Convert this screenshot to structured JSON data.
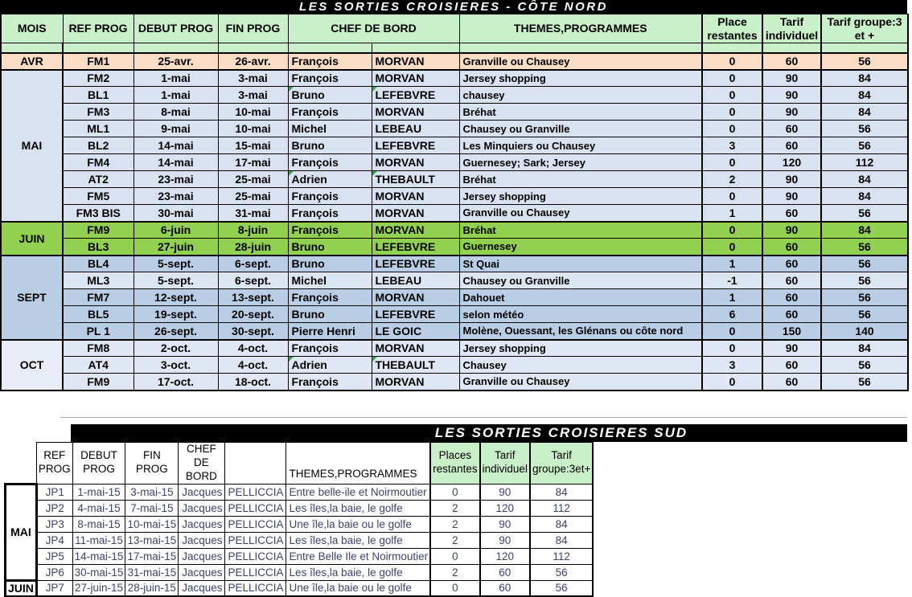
{
  "colors": {
    "title_bg": "#000000",
    "title_fg": "#ffffff",
    "head_green": "#c9f0c9",
    "avr": "#fbdcc5",
    "mai": "#d9e2f1",
    "juin": "#92d050",
    "sept": "#b9cde5",
    "sept_light": "#dce5f2",
    "oct": "#dee7f3",
    "oct_month": "#e7ecf6",
    "south_text": "#39456b",
    "marker": "#2fa84f"
  },
  "table_north": {
    "title": "LES SORTIES CROISIERES - CÔTE NORD",
    "headers": [
      "MOIS",
      "REF PROG",
      "DEBUT PROG",
      "FIN PROG",
      "CHEF DE BORD",
      "THEMES,PROGRAMMES",
      "Place\nrestantes",
      "Tarif\nindividuel",
      "Tarif  groupe:3\net +"
    ],
    "groups": [
      {
        "month": "AVR",
        "style": "avr",
        "rows": [
          {
            "ref": "FM1",
            "debut": "25-avr.",
            "fin": "26-avr.",
            "chef_first": "François",
            "chef_last": "MORVAN",
            "theme": "Granville ou Chausey",
            "places": "0",
            "tarif_ind": "60",
            "tarif_grp": "56"
          }
        ]
      },
      {
        "month": "MAI",
        "style": "mai",
        "rows": [
          {
            "ref": "FM2",
            "debut": "1-mai",
            "fin": "3-mai",
            "chef_first": "François",
            "chef_last": "MORVAN",
            "theme": "Jersey shopping",
            "places": "0",
            "tarif_ind": "90",
            "tarif_grp": "84"
          },
          {
            "ref": "BL1",
            "debut": "1-mai",
            "fin": "3-mai",
            "chef_first": "Bruno",
            "chef_last": "LEFEBVRE",
            "theme": "chausey",
            "places": "0",
            "tarif_ind": "90",
            "tarif_grp": "84",
            "marker": true
          },
          {
            "ref": "FM3",
            "debut": "8-mai",
            "fin": "10-mai",
            "chef_first": "François",
            "chef_last": "MORVAN",
            "theme": "Bréhat",
            "places": "0",
            "tarif_ind": "90",
            "tarif_grp": "84"
          },
          {
            "ref": "ML1",
            "debut": "9-mai",
            "fin": "10-mai",
            "chef_first": "Michel",
            "chef_last": "LEBEAU",
            "theme": "Chausey ou Granville",
            "places": "0",
            "tarif_ind": "60",
            "tarif_grp": "56"
          },
          {
            "ref": "BL2",
            "debut": "14-mai",
            "fin": "15-mai",
            "chef_first": "Bruno",
            "chef_last": "LEFEBVRE",
            "theme": "Les Minquiers ou Chausey",
            "places": "3",
            "tarif_ind": "60",
            "tarif_grp": "56"
          },
          {
            "ref": "FM4",
            "debut": "14-mai",
            "fin": "17-mai",
            "chef_first": "François",
            "chef_last": "MORVAN",
            "theme": "Guernesey; Sark; Jersey",
            "places": "0",
            "tarif_ind": "120",
            "tarif_grp": "112"
          },
          {
            "ref": "AT2",
            "debut": "23-mai",
            "fin": "25-mai",
            "chef_first": "Adrien",
            "chef_last": "THEBAULT",
            "theme": "Bréhat",
            "places": "2",
            "tarif_ind": "90",
            "tarif_grp": "84",
            "marker": true
          },
          {
            "ref": "FM5",
            "debut": "23-mai",
            "fin": "25-mai",
            "chef_first": "François",
            "chef_last": "MORVAN",
            "theme": "Jersey shopping",
            "places": "0",
            "tarif_ind": "90",
            "tarif_grp": "84"
          },
          {
            "ref": "FM3 BIS",
            "debut": "30-mai",
            "fin": "31-mai",
            "chef_first": "François",
            "chef_last": "MORVAN",
            "theme": "Granville ou Chausey",
            "places": "1",
            "tarif_ind": "60",
            "tarif_grp": "56"
          }
        ]
      },
      {
        "month": "JUIN",
        "style": "juin",
        "rows": [
          {
            "ref": "FM9",
            "debut": "6-juin",
            "fin": "8-juin",
            "chef_first": "François",
            "chef_last": "MORVAN",
            "theme": "Bréhat",
            "places": "0",
            "tarif_ind": "90",
            "tarif_grp": "84"
          },
          {
            "ref": "BL3",
            "debut": "27-juin",
            "fin": "28-juin",
            "chef_first": "Bruno",
            "chef_last": "LEFEBVRE",
            "theme": "Guernesey",
            "places": "0",
            "tarif_ind": "60",
            "tarif_grp": "56"
          }
        ]
      },
      {
        "month": "SEPT",
        "style": "sept",
        "rows": [
          {
            "ref": "BL4",
            "debut": "5-sept.",
            "fin": "6-sept.",
            "chef_first": "Bruno",
            "chef_last": "LEFEBVRE",
            "theme": "St Quai",
            "places": "1",
            "tarif_ind": "60",
            "tarif_grp": "56"
          },
          {
            "ref": "ML3",
            "debut": "5-sept.",
            "fin": "6-sept.",
            "chef_first": "Michel",
            "chef_last": "LEBEAU",
            "theme": "Chausey ou Granville",
            "places": "-1",
            "tarif_ind": "60",
            "tarif_grp": "56",
            "tint": true
          },
          {
            "ref": "FM7",
            "debut": "12-sept.",
            "fin": "13-sept.",
            "chef_first": "François",
            "chef_last": "MORVAN",
            "theme": "Dahouet",
            "places": "1",
            "tarif_ind": "60",
            "tarif_grp": "56"
          },
          {
            "ref": "BL5",
            "debut": "19-sept.",
            "fin": "20-sept.",
            "chef_first": "Bruno",
            "chef_last": "LEFEBVRE",
            "theme": "selon météo",
            "places": "6",
            "tarif_ind": "60",
            "tarif_grp": "56"
          },
          {
            "ref": "PL 1",
            "debut": "26-sept.",
            "fin": "30-sept.",
            "chef_first": "Pierre Henri",
            "chef_last": "LE GOIC",
            "theme": "Molène, Ouessant, les Glénans ou côte nord",
            "places": "0",
            "tarif_ind": "150",
            "tarif_grp": "140"
          }
        ]
      },
      {
        "month": "OCT",
        "style": "oct",
        "rows": [
          {
            "ref": "FM8",
            "debut": "2-oct.",
            "fin": "4-oct.",
            "chef_first": "François",
            "chef_last": "MORVAN",
            "theme": "Jersey shopping",
            "places": "0",
            "tarif_ind": "90",
            "tarif_grp": "84"
          },
          {
            "ref": "AT4",
            "debut": "3-oct.",
            "fin": "4-oct.",
            "chef_first": "Adrien",
            "chef_last": "THEBAULT",
            "theme": "Chausey",
            "places": "3",
            "tarif_ind": "60",
            "tarif_grp": "56",
            "marker": true
          },
          {
            "ref": "FM9",
            "debut": "17-oct.",
            "fin": "18-oct.",
            "chef_first": "François",
            "chef_last": "MORVAN",
            "theme": "Granville ou Chausey",
            "places": "0",
            "tarif_ind": "60",
            "tarif_grp": "56"
          }
        ]
      }
    ]
  },
  "table_south": {
    "title": "LES SORTIES CROISIERES SUD",
    "headers": [
      "REF PROG",
      "DEBUT PROG",
      "FIN PROG",
      "CHEF DE BORD",
      "",
      "THEMES,PROGRAMMES",
      "Places\nrestantes",
      "Tarif\nindividuel",
      "Tarif\ngroupe:3et+"
    ],
    "groups": [
      {
        "month": "MAI",
        "style": "south",
        "rows": [
          {
            "ref": "JP1",
            "debut": "1-mai-15",
            "fin": "3-mai-15",
            "chef_first": "Jacques",
            "chef_last": "PELLICCIA",
            "theme": "Entre belle-ile et Noirmoutier",
            "places": "0",
            "tarif_ind": "90",
            "tarif_grp": "84"
          },
          {
            "ref": "JP2",
            "debut": "4-mai-15",
            "fin": "7-mai-15",
            "chef_first": "Jacques",
            "chef_last": "PELLICCIA",
            "theme": "Les îles,la baie, le golfe",
            "places": "2",
            "tarif_ind": "120",
            "tarif_grp": "112"
          },
          {
            "ref": "JP3",
            "debut": "8-mai-15",
            "fin": "10-mai-15",
            "chef_first": "Jacques",
            "chef_last": "PELLICCIA",
            "theme": "Une  île,la baie ou le golfe",
            "places": "2",
            "tarif_ind": "90",
            "tarif_grp": "84"
          },
          {
            "ref": "JP4",
            "debut": "11-mai-15",
            "fin": "13-mai-15",
            "chef_first": "Jacques",
            "chef_last": "PELLICCIA",
            "theme": "Les îles,la baie, le golfe",
            "places": "2",
            "tarif_ind": "90",
            "tarif_grp": "84"
          },
          {
            "ref": "JP5",
            "debut": "14-mai-15",
            "fin": "17-mai-15",
            "chef_first": "Jacques",
            "chef_last": "PELLICCIA",
            "theme": "Entre Belle Ile et Noirmoutier",
            "places": "0",
            "tarif_ind": "120",
            "tarif_grp": "112"
          },
          {
            "ref": "JP6",
            "debut": "30-mai-15",
            "fin": "31-mai-15",
            "chef_first": "Jacques",
            "chef_last": "PELLICCIA",
            "theme": "Les îles,la baie, le golfe",
            "places": "2",
            "tarif_ind": "60",
            "tarif_grp": "56"
          }
        ]
      },
      {
        "month": "JUIN",
        "style": "south",
        "rows": [
          {
            "ref": "JP7",
            "debut": "27-juin-15",
            "fin": "28-juin-15",
            "chef_first": "Jacques",
            "chef_last": "PELLICCIA",
            "theme": "Une  île,la baie ou le golfe",
            "places": "0",
            "tarif_ind": "60",
            "tarif_grp": "56"
          }
        ]
      }
    ]
  }
}
